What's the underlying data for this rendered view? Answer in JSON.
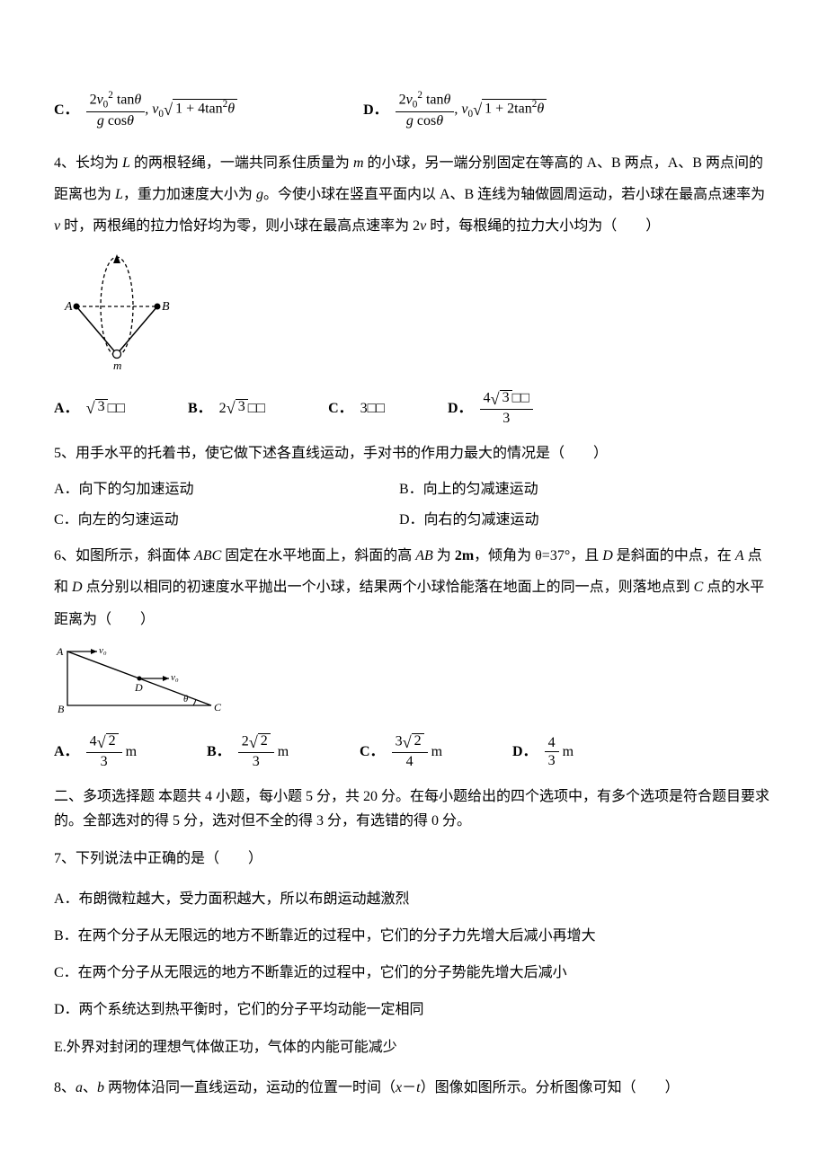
{
  "q3opts": {
    "C": {
      "label": "C．",
      "frac_num_html": "2<i>v</i><sub>0</sub><sup>2</sup> tan<i>θ</i>",
      "frac_den_html": "<i>g</i> cos<i>θ</i>",
      "tail_prefix": ", <i>v</i><sub>0</sub>",
      "radicand": "1 + 4tan<sup>2</sup><i>θ</i>"
    },
    "D": {
      "label": "D．",
      "frac_num_html": "2<i>v</i><sub>0</sub><sup>2</sup> tan<i>θ</i>",
      "frac_den_html": "<i>g</i> cos<i>θ</i>",
      "tail_prefix": ", <i>v</i><sub>0</sub>",
      "radicand": "1 + 2tan<sup>2</sup><i>θ</i>"
    }
  },
  "q4": {
    "stem": "4、长均为 <span class=\"italic-var\">L</span> 的两根轻绳，一端共同系住质量为 <span class=\"italic-var\">m</span> 的小球，另一端分别固定在等高的 A、B 两点，A、B 两点间的距离也为 <span class=\"italic-var\">L</span>，重力加速度大小为 <span class=\"italic-var\">g</span>。今使小球在竖直平面内以 A、B 连线为轴做圆周运动，若小球在最高点速率为 <span class=\"italic-var\">v</span> 时，两根绳的拉力恰好均为零，则小球在最高点速率为 2<span class=\"italic-var\">v</span> 时，每根绳的拉力大小均为（　　）",
    "diagram": {
      "A": "A",
      "B": "B",
      "m": "m"
    },
    "opts": {
      "A": {
        "label": "A．",
        "body_html": "<span class=\"radical\"><span class=\"surd\">√</span><span class=\"radicand\">3</span></span>□□"
      },
      "B": {
        "label": "B．",
        "body_html": "<span class=\"mathu\">2</span><span class=\"radical\"><span class=\"surd\">√</span><span class=\"radicand\">3</span></span>□□"
      },
      "C": {
        "label": "C．",
        "body_html": "<span class=\"mathu\">3</span>□□"
      },
      "D": {
        "label": "D．",
        "body_html": "<span class=\"frac\"><span class=\"num\">4<span class=\"radical\"><span class=\"surd\">√</span><span class=\"radicand\">3</span></span>□□</span><span class=\"den\">3</span></span>"
      }
    }
  },
  "q5": {
    "stem": "5、用手水平的托着书，使它做下述各直线运动，手对书的作用力最大的情况是（　　）",
    "opts": {
      "A": "A．向下的匀加速运动",
      "B": "B．向上的匀减速运动",
      "C": "C．向左的匀速运动",
      "D": "D．向右的匀减速运动"
    }
  },
  "q6": {
    "stem": "6、如图所示，斜面体 <span class=\"italic-var\">ABC</span> 固定在水平地面上，斜面的高 <span class=\"italic-var\">AB</span> 为 <b>2m</b>，倾角为 θ=37°，且 <span class=\"italic-var\">D</span> 是斜面的中点，在 <span class=\"italic-var\">A</span> 点和 <span class=\"italic-var\">D</span> 点分别以相同的初速度水平抛出一个小球，结果两个小球恰能落在地面上的同一点，则落地点到 <span class=\"italic-var\">C</span> 点的水平距离为（　　）",
    "diagram": {
      "A": "A",
      "B": "B",
      "C": "C",
      "D": "D",
      "theta": "θ",
      "v0": "v₀"
    },
    "opts": {
      "A": {
        "label": "A．",
        "num_html": "4<span class=\"radical\"><span class=\"surd\">√</span><span class=\"radicand\">2</span></span>",
        "den": "3",
        "unit": "m"
      },
      "B": {
        "label": "B．",
        "num_html": "2<span class=\"radical\"><span class=\"surd\">√</span><span class=\"radicand\">2</span></span>",
        "den": "3",
        "unit": "m"
      },
      "C": {
        "label": "C．",
        "num_html": "3<span class=\"radical\"><span class=\"surd\">√</span><span class=\"radicand\">2</span></span>",
        "den": "4",
        "unit": "m"
      },
      "D": {
        "label": "D．",
        "num_html": "4",
        "den": "3",
        "unit": "m"
      }
    }
  },
  "section2": "二、多项选择题 本题共 4 小题，每小题 5 分，共 20 分。在每小题给出的四个选项中，有多个选项是符合题目要求的。全部选对的得 5 分，选对但不全的得 3 分，有选错的得 0 分。",
  "q7": {
    "stem": "7、下列说法中正确的是（　　）",
    "opts": {
      "A": "A．布朗微粒越大，受力面积越大，所以布朗运动越激烈",
      "B": "B．在两个分子从无限远的地方不断靠近的过程中，它们的分子力先增大后减小再增大",
      "C": "C．在两个分子从无限远的地方不断靠近的过程中，它们的分子势能先增大后减小",
      "D": "D．两个系统达到热平衡时，它们的分子平均动能一定相同",
      "E": "E.外界对封闭的理想气体做正功，气体的内能可能减少"
    }
  },
  "q8": {
    "stem": "8、<span class=\"italic-var\">a</span>、<span class=\"italic-var\">b</span> 两物体沿同一直线运动，运动的位置一时间（<span class=\"italic-var\">x</span>－<span class=\"italic-var\">t</span>）图像如图所示。分析图像可知（　　）"
  }
}
